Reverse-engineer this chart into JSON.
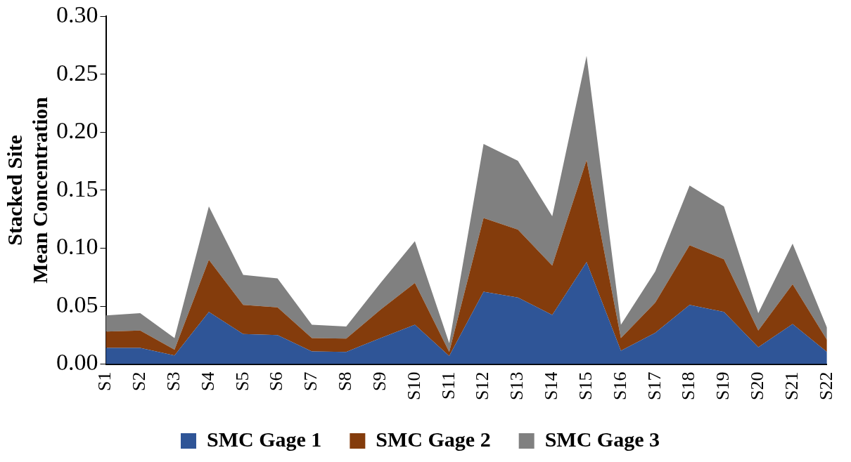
{
  "chart_data": {
    "type": "area",
    "stacked": true,
    "ylabel": "Stacked Site Mean Concentration",
    "categories": [
      "S1",
      "S2",
      "S3",
      "S4",
      "S5",
      "S6",
      "S7",
      "S8",
      "S9",
      "S10",
      "S11",
      "S12",
      "S13",
      "S14",
      "S15",
      "S16",
      "S17",
      "S18",
      "S19",
      "S20",
      "S21",
      "S22"
    ],
    "series": [
      {
        "name": "SMC Gage 1",
        "color": "#2f5597",
        "values": [
          0.014,
          0.014,
          0.0075,
          0.045,
          0.026,
          0.025,
          0.011,
          0.0105,
          0.0225,
          0.034,
          0.007,
          0.0625,
          0.0575,
          0.0425,
          0.088,
          0.0115,
          0.027,
          0.051,
          0.045,
          0.0145,
          0.0345,
          0.0105
        ]
      },
      {
        "name": "SMC Gage 2",
        "color": "#843c0c",
        "values": [
          0.014,
          0.015,
          0.005,
          0.045,
          0.025,
          0.024,
          0.0115,
          0.0115,
          0.0245,
          0.036,
          0.0035,
          0.0635,
          0.0585,
          0.0425,
          0.088,
          0.011,
          0.026,
          0.0515,
          0.0455,
          0.0145,
          0.0345,
          0.0105
        ]
      },
      {
        "name": "SMC Gage 3",
        "color": "#808080",
        "values": [
          0.014,
          0.015,
          0.01,
          0.046,
          0.026,
          0.025,
          0.0115,
          0.0105,
          0.023,
          0.036,
          0.0075,
          0.064,
          0.0595,
          0.0425,
          0.09,
          0.0115,
          0.027,
          0.0515,
          0.0455,
          0.015,
          0.035,
          0.0105
        ]
      }
    ],
    "ylim": [
      0,
      0.3
    ],
    "yticks": [
      {
        "value": 0,
        "label": "0.00"
      },
      {
        "value": 0.05,
        "label": "0.05"
      },
      {
        "value": 0.1,
        "label": "0.10"
      },
      {
        "value": 0.15,
        "label": "0.15"
      },
      {
        "value": 0.2,
        "label": "0.20"
      },
      {
        "value": 0.25,
        "label": "0.25"
      },
      {
        "value": 0.3,
        "label": "0.30"
      }
    ],
    "grid": false,
    "legend": "bottom"
  }
}
